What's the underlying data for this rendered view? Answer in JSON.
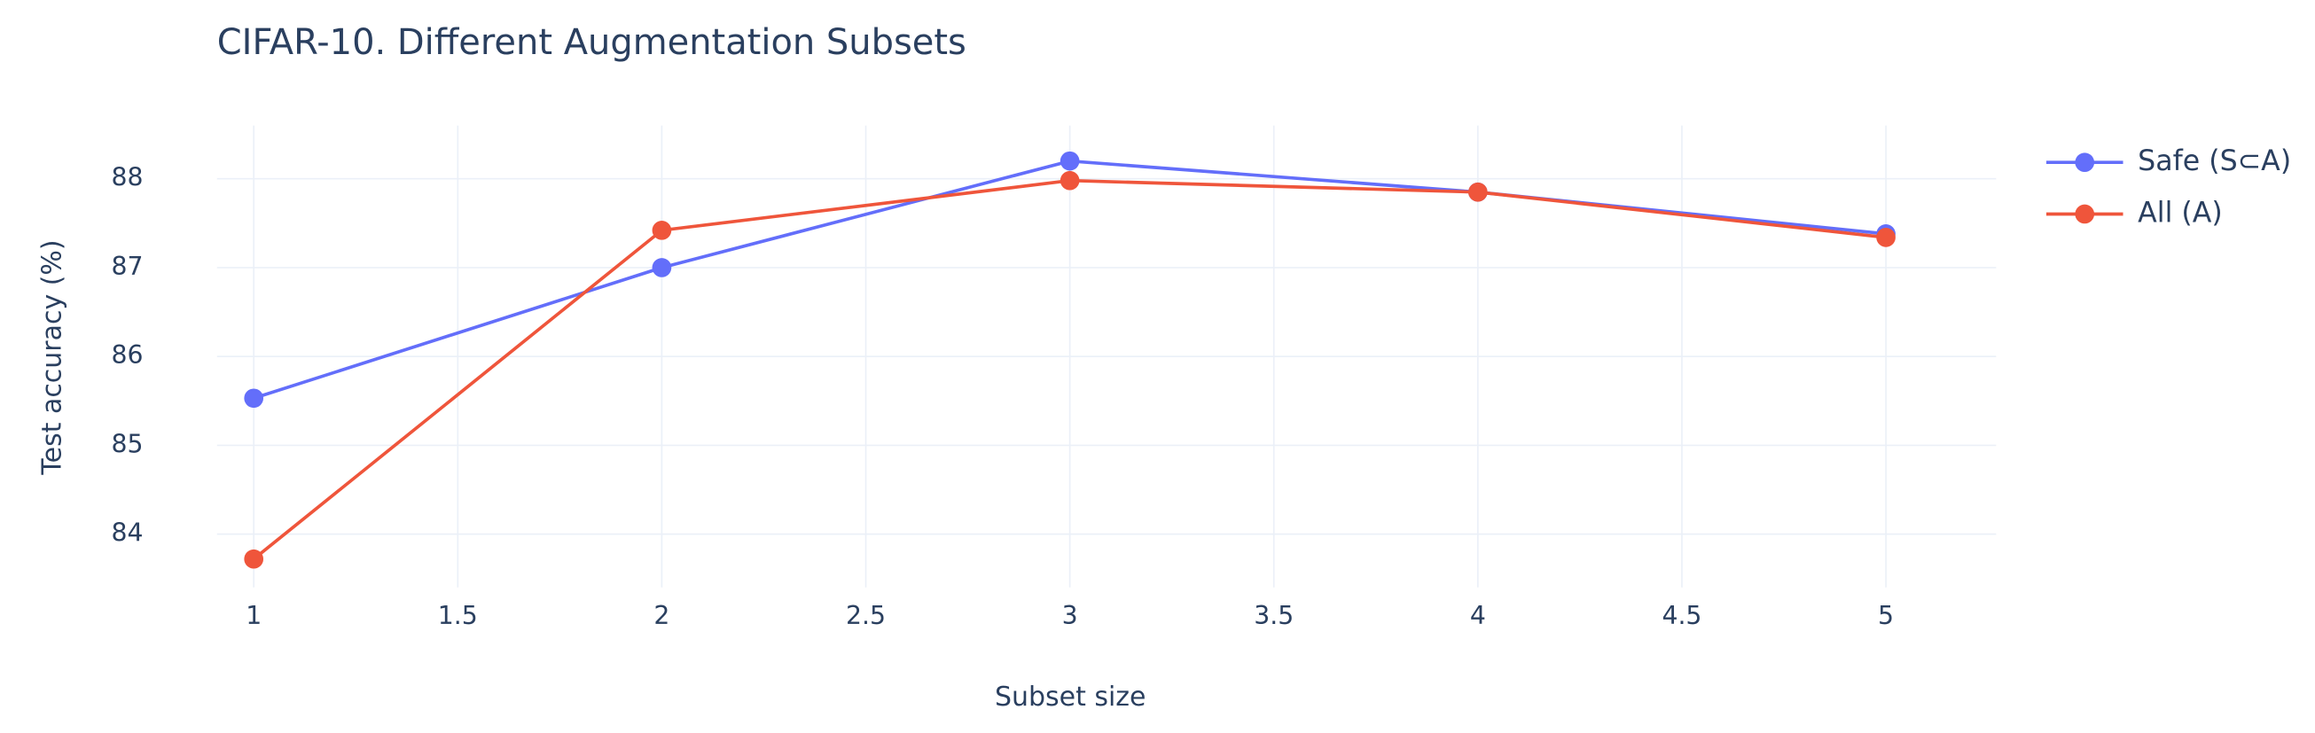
{
  "chart_data": {
    "type": "line",
    "title": "CIFAR-10. Different Augmentation Subsets",
    "x_label": "Subset size",
    "y_label": "Test accuracy (%)",
    "x": [
      1,
      2,
      3,
      4,
      5
    ],
    "series": [
      {
        "name": "Safe (S⊂A)",
        "color": "#636efa",
        "values": [
          85.53,
          87.0,
          88.2,
          87.85,
          87.38
        ]
      },
      {
        "name": "All (A)",
        "color": "#ef553b",
        "values": [
          83.72,
          87.42,
          87.98,
          87.85,
          87.34
        ]
      }
    ],
    "xlim": [
      0.91,
      5.27
    ],
    "xticks": [
      1,
      1.5,
      2,
      2.5,
      3,
      3.5,
      4,
      4.5,
      5
    ],
    "ylim": [
      83.4,
      88.6
    ],
    "yticks": [
      84,
      85,
      86,
      87,
      88
    ],
    "grid": true,
    "legend": "right"
  }
}
